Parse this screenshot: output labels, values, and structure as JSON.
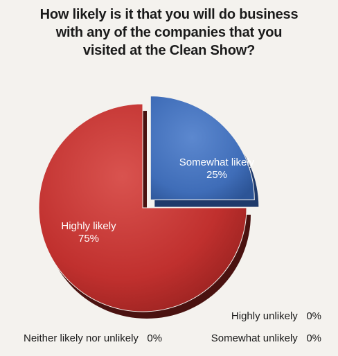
{
  "chart_data": {
    "type": "pie",
    "title_lines": [
      "How likely is it that you will do business",
      "with any of the companies that you",
      "visited at the Clean Show?"
    ],
    "slices": [
      {
        "label": "Highly likely",
        "value": 75,
        "display": "75%",
        "color": "#c23432",
        "exploded": false
      },
      {
        "label": "Somewhat likely",
        "value": 25,
        "display": "25%",
        "color": "#4471bb",
        "exploded": true
      },
      {
        "label": "Highly unlikely",
        "value": 0,
        "display": "0%"
      },
      {
        "label": "Somewhat unlikely",
        "value": 0,
        "display": "0%"
      },
      {
        "label": "Neither likely nor unlikely",
        "value": 0,
        "display": "0%"
      }
    ]
  }
}
